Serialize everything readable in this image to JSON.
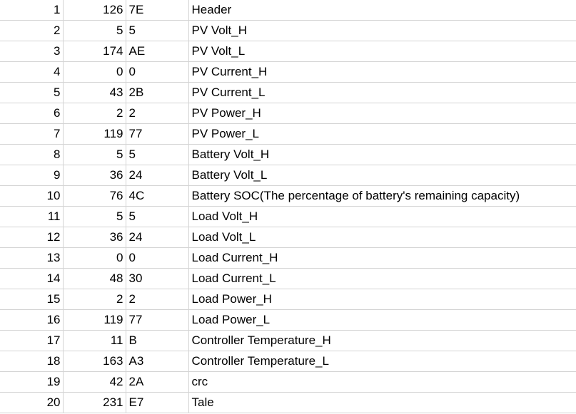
{
  "rows": [
    {
      "idx": "1",
      "dec": "126",
      "hex": "7E",
      "desc": "Header"
    },
    {
      "idx": "2",
      "dec": "5",
      "hex": "5",
      "desc": "PV Volt_H"
    },
    {
      "idx": "3",
      "dec": "174",
      "hex": "AE",
      "desc": "PV Volt_L"
    },
    {
      "idx": "4",
      "dec": "0",
      "hex": "0",
      "desc": "PV Current_H"
    },
    {
      "idx": "5",
      "dec": "43",
      "hex": "2B",
      "desc": "PV Current_L"
    },
    {
      "idx": "6",
      "dec": "2",
      "hex": "2",
      "desc": "PV Power_H"
    },
    {
      "idx": "7",
      "dec": "119",
      "hex": "77",
      "desc": "PV Power_L"
    },
    {
      "idx": "8",
      "dec": "5",
      "hex": "5",
      "desc": "Battery Volt_H"
    },
    {
      "idx": "9",
      "dec": "36",
      "hex": "24",
      "desc": "Battery Volt_L"
    },
    {
      "idx": "10",
      "dec": "76",
      "hex": "4C",
      "desc": "Battery SOC(The percentage of battery's remaining capacity)"
    },
    {
      "idx": "11",
      "dec": "5",
      "hex": "5",
      "desc": "Load Volt_H"
    },
    {
      "idx": "12",
      "dec": "36",
      "hex": "24",
      "desc": "Load Volt_L"
    },
    {
      "idx": "13",
      "dec": "0",
      "hex": "0",
      "desc": "Load Current_H"
    },
    {
      "idx": "14",
      "dec": "48",
      "hex": "30",
      "desc": "Load Current_L"
    },
    {
      "idx": "15",
      "dec": "2",
      "hex": "2",
      "desc": "Load Power_H"
    },
    {
      "idx": "16",
      "dec": "119",
      "hex": "77",
      "desc": "Load Power_L"
    },
    {
      "idx": "17",
      "dec": "11",
      "hex": "B",
      "desc": "Controller Temperature_H"
    },
    {
      "idx": "18",
      "dec": "163",
      "hex": "A3",
      "desc": "Controller Temperature_L"
    },
    {
      "idx": "19",
      "dec": "42",
      "hex": "2A",
      "desc": "crc"
    },
    {
      "idx": "20",
      "dec": "231",
      "hex": "E7",
      "desc": "Tale"
    }
  ],
  "colors": {
    "gridline": "#d4d4d4",
    "background": "#ffffff",
    "text": "#000000"
  }
}
